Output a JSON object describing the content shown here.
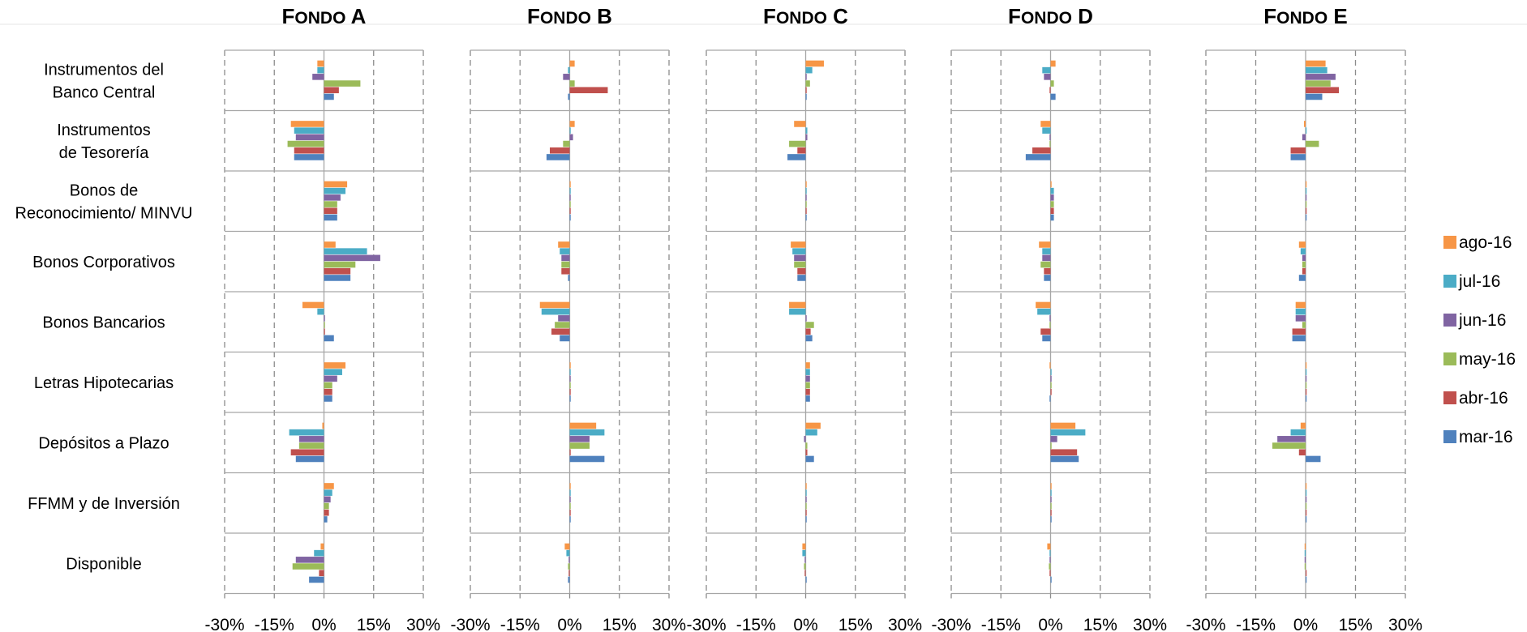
{
  "chart_data": {
    "type": "bar",
    "orientation": "horizontal",
    "panels": [
      {
        "title": "Fondo A"
      },
      {
        "title": "Fondo B"
      },
      {
        "title": "Fondo C"
      },
      {
        "title": "Fondo D"
      },
      {
        "title": "Fondo E"
      }
    ],
    "categories": [
      [
        "Instrumentos del",
        "Banco Central"
      ],
      [
        "Instrumentos",
        "de Tesorería"
      ],
      [
        "Bonos de",
        "Reconocimiento/ MINVU"
      ],
      [
        "Bonos Corporativos"
      ],
      [
        "Bonos Bancarios"
      ],
      [
        "Letras Hipotecarias"
      ],
      [
        "Depósitos a Plazo"
      ],
      [
        "FFMM y de Inversión"
      ],
      [
        "Disponible"
      ]
    ],
    "xlim": [
      -30,
      30
    ],
    "xticks": [
      -30,
      -15,
      0,
      15,
      30
    ],
    "xtick_labels": [
      "-30%",
      "-15%",
      "0%",
      "15%",
      "30%"
    ],
    "grid": true,
    "legend_position": "right",
    "series": [
      {
        "name": "ago-16",
        "color": "#F79646",
        "values": [
          [
            -2,
            -10,
            7,
            3.5,
            -6.5,
            6.5,
            -0.5,
            3,
            -1
          ],
          [
            1.5,
            1.5,
            0.3,
            -3.5,
            -9,
            0.3,
            8,
            0.3,
            -1.5
          ],
          [
            5.5,
            -3.5,
            0.3,
            -4.5,
            -5,
            1.3,
            4.5,
            0.3,
            -1
          ],
          [
            1.5,
            -3,
            0.3,
            -3.5,
            -4.5,
            -0.3,
            7.5,
            0.3,
            -1
          ],
          [
            6,
            -0.5,
            0.3,
            -2,
            -3,
            0.3,
            -1.5,
            0.3,
            -0.3
          ]
        ]
      },
      {
        "name": "jul-16",
        "color": "#4BACC6",
        "values": [
          [
            -2,
            -9,
            6.5,
            13,
            -2,
            5.5,
            -10.5,
            2.5,
            -3
          ],
          [
            -0.5,
            0.3,
            0.3,
            -3,
            -8.5,
            0.3,
            10.5,
            0.3,
            -1
          ],
          [
            2,
            0.5,
            0.3,
            -4,
            -5,
            1.3,
            3.5,
            0.3,
            -1
          ],
          [
            -2.5,
            -2.5,
            1,
            -2.5,
            -4,
            0.3,
            10.5,
            0.3,
            -0.3
          ],
          [
            6.5,
            0.3,
            0.3,
            -1.5,
            -3,
            0.3,
            -4.5,
            0.3,
            -0.3
          ]
        ]
      },
      {
        "name": "jun-16",
        "color": "#8064A2",
        "values": [
          [
            -3.5,
            -8.5,
            5,
            17,
            0.3,
            4,
            -7.5,
            2,
            -8.5
          ],
          [
            -2,
            1,
            0.3,
            -2.5,
            -3.5,
            0.3,
            6,
            0.3,
            -0.3
          ],
          [
            0.3,
            0.5,
            0.3,
            -3.5,
            0.3,
            1.3,
            -0.5,
            0.3,
            -0.3
          ],
          [
            -2,
            -0.3,
            1,
            -2.5,
            -0.3,
            0.3,
            2,
            0.3,
            -0.3
          ],
          [
            9,
            -1,
            0.3,
            -1,
            -3,
            0.3,
            -8.5,
            0.3,
            -0.3
          ]
        ]
      },
      {
        "name": "may-16",
        "color": "#9BBB59",
        "values": [
          [
            11,
            -11,
            4,
            9.5,
            0.3,
            2.5,
            -7.5,
            1.5,
            -9.5
          ],
          [
            1.5,
            -2,
            0.3,
            -2.5,
            -4.5,
            0.3,
            6,
            0.3,
            -0.5
          ],
          [
            1.3,
            -5,
            0.3,
            -3.5,
            2.5,
            1.3,
            0.5,
            0.3,
            -0.5
          ],
          [
            1,
            -0.3,
            1,
            -3,
            -0.3,
            0.3,
            0.3,
            0.3,
            -0.5
          ],
          [
            7.5,
            4,
            0.3,
            -1,
            -1,
            0.3,
            -10,
            0.3,
            -0.3
          ]
        ]
      },
      {
        "name": "abr-16",
        "color": "#C0504D",
        "values": [
          [
            4.5,
            -9,
            4,
            8,
            0.3,
            2.5,
            -10,
            1.5,
            -1.5
          ],
          [
            11.5,
            -6,
            0.3,
            -2.5,
            -5.5,
            0.3,
            0.3,
            0.3,
            -0.3
          ],
          [
            0.3,
            -2.5,
            0.3,
            -2.5,
            1.5,
            1.3,
            0.5,
            0.3,
            -0.3
          ],
          [
            -0.3,
            -5.5,
            1,
            -2,
            -3,
            0.3,
            8,
            0.3,
            -0.3
          ],
          [
            10,
            -4.5,
            0.3,
            -1,
            -4,
            0.3,
            -2,
            0.3,
            0.3
          ]
        ]
      },
      {
        "name": "mar-16",
        "color": "#4F81BD",
        "values": [
          [
            3,
            -9,
            4,
            8,
            3,
            2.5,
            -8.5,
            1,
            -4.5
          ],
          [
            -0.5,
            -7,
            0.3,
            -0.5,
            -3,
            0.3,
            10.5,
            0.3,
            -0.5
          ],
          [
            0.3,
            -5.5,
            0.3,
            -2.5,
            2,
            1.3,
            2.5,
            0.3,
            0.3
          ],
          [
            1.5,
            -7.5,
            1,
            -2,
            -2.5,
            -0.3,
            8.5,
            0.3,
            0.3
          ],
          [
            5,
            -4.5,
            0.3,
            -2,
            -4,
            0.3,
            4.5,
            0.3,
            0.3
          ]
        ]
      }
    ]
  }
}
